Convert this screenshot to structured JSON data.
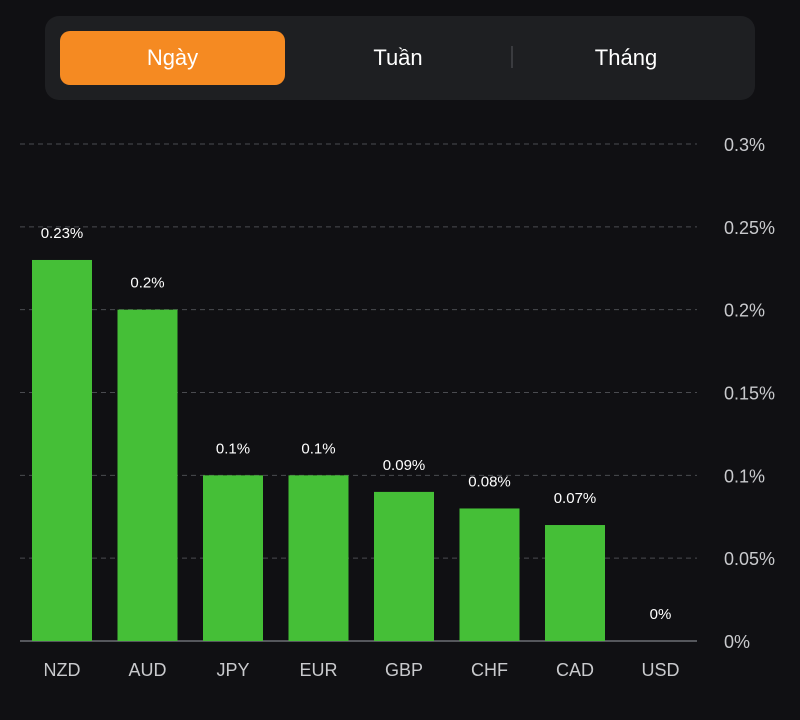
{
  "segmented_control": {
    "tabs": [
      {
        "label": "Ngày",
        "active": true
      },
      {
        "label": "Tuần",
        "active": false
      },
      {
        "label": "Tháng",
        "active": false
      }
    ],
    "accent_color": "#f58a22"
  },
  "chart_data": {
    "type": "bar",
    "title": "",
    "xlabel": "",
    "ylabel": "",
    "categories": [
      "NZD",
      "AUD",
      "JPY",
      "EUR",
      "GBP",
      "CHF",
      "CAD",
      "USD"
    ],
    "values": [
      0.23,
      0.2,
      0.1,
      0.1,
      0.09,
      0.08,
      0.07,
      0
    ],
    "data_labels": [
      "0.23%",
      "0.2%",
      "0.1%",
      "0.1%",
      "0.09%",
      "0.08%",
      "0.07%",
      "0%"
    ],
    "ylim": [
      0,
      0.3
    ],
    "y_ticks": [
      0,
      0.05,
      0.1,
      0.15,
      0.2,
      0.25,
      0.3
    ],
    "y_tick_labels": [
      "0%",
      "0.05%",
      "0.1%",
      "0.15%",
      "0.2%",
      "0.25%",
      "0.3%"
    ],
    "y_axis_position": "right",
    "grid": true,
    "bar_color": "#45bf37",
    "legend": null
  }
}
